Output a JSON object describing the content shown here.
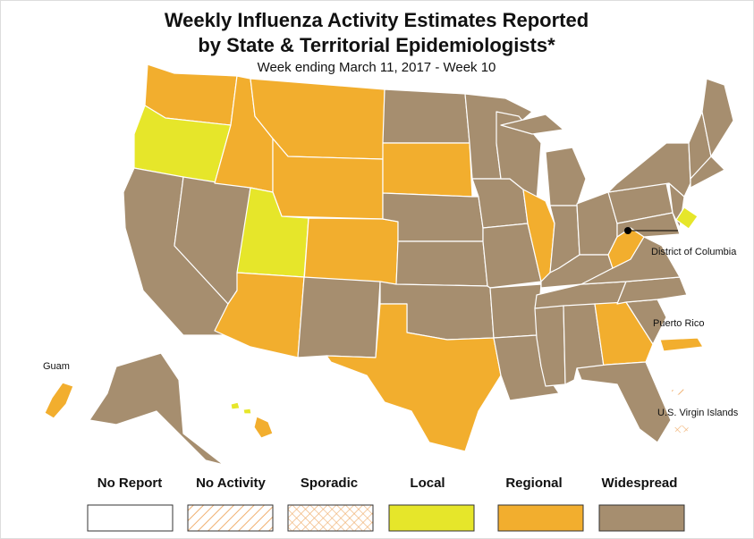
{
  "header": {
    "title_line1": "Weekly Influenza Activity Estimates Reported",
    "title_line2": "by State & Territorial Epidemiologists*",
    "subtitle": "Week ending March 11, 2017 - Week 10"
  },
  "territories": {
    "dc": "District of Columbia",
    "puerto_rico": "Puerto Rico",
    "guam": "Guam",
    "virgin_islands": "U.S. Virgin Islands"
  },
  "legend": [
    {
      "label": "No Report",
      "color": "#ffffff",
      "pattern": "none"
    },
    {
      "label": "No Activity",
      "color": "#f0b070",
      "pattern": "diagonal"
    },
    {
      "label": "Sporadic",
      "color": "#f0b070",
      "pattern": "cross"
    },
    {
      "label": "Local",
      "color": "#e6e62a",
      "pattern": "none"
    },
    {
      "label": "Regional",
      "color": "#f2ae2e",
      "pattern": "none"
    },
    {
      "label": "Widespread",
      "color": "#a68e6f",
      "pattern": "none"
    }
  ]
}
